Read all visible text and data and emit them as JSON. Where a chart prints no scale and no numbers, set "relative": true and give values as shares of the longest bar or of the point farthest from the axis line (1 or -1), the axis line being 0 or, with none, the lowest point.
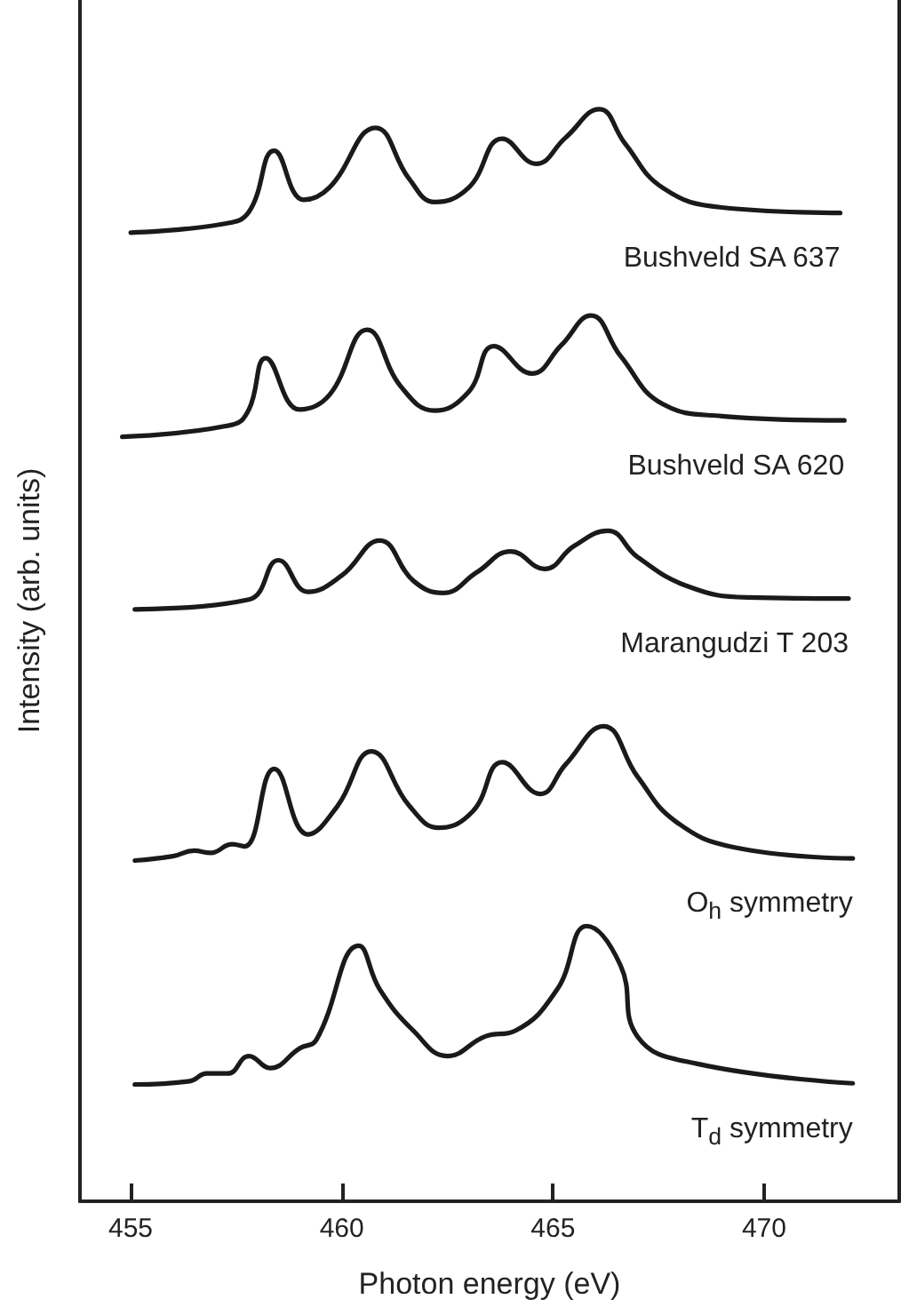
{
  "chart_data": {
    "type": "line",
    "relative": true,
    "xlabel": "Photon energy (eV)",
    "ylabel": "Intensity (arb. units)",
    "xlim": [
      453.8,
      473.2
    ],
    "xticks": [
      455,
      460,
      465,
      470
    ],
    "grid": false,
    "legend": false,
    "marker": "none",
    "line_style": "solid",
    "series": [
      {
        "name": "Bushveld SA 637",
        "color": "#1a1a1a",
        "x": [
          455.0,
          457.2,
          457.8,
          458.4,
          459.1,
          459.7,
          460.8,
          461.6,
          462.2,
          463.0,
          463.8,
          464.6,
          465.3,
          466.1,
          466.7,
          467.6,
          469.0,
          471.8
        ],
        "values": [
          0.887,
          0.895,
          0.906,
          0.962,
          0.917,
          0.928,
          0.983,
          0.936,
          0.915,
          0.928,
          0.973,
          0.95,
          0.974,
          1.0,
          0.969,
          0.928,
          0.91,
          0.905
        ]
      },
      {
        "name": "Bushveld SA 620",
        "color": "#1a1a1a",
        "x": [
          454.8,
          457.4,
          457.8,
          458.2,
          459.0,
          459.7,
          460.6,
          461.4,
          462.2,
          463.0,
          463.6,
          464.5,
          465.2,
          465.9,
          466.6,
          467.6,
          469.0,
          471.9
        ],
        "values": [
          0.7,
          0.711,
          0.725,
          0.772,
          0.725,
          0.738,
          0.798,
          0.746,
          0.724,
          0.741,
          0.783,
          0.758,
          0.784,
          0.811,
          0.774,
          0.73,
          0.719,
          0.715
        ]
      },
      {
        "name": "Marangudzi T 203",
        "color": "#1a1a1a",
        "x": [
          455.1,
          457.8,
          458.5,
          459.2,
          460.0,
          460.9,
          461.7,
          462.4,
          463.2,
          464.0,
          464.8,
          465.5,
          466.3,
          467.0,
          468.2,
          469.6,
          472.0
        ],
        "values": [
          0.542,
          0.551,
          0.587,
          0.558,
          0.573,
          0.605,
          0.568,
          0.557,
          0.576,
          0.595,
          0.579,
          0.6,
          0.614,
          0.59,
          0.563,
          0.553,
          0.552
        ]
      },
      {
        "name": "O$_{h}$ symmetry",
        "color": "#1a1a1a",
        "x": [
          455.1,
          456.0,
          456.5,
          456.9,
          457.4,
          457.7,
          458.4,
          459.2,
          459.9,
          460.7,
          461.6,
          462.3,
          463.1,
          463.8,
          464.7,
          465.3,
          466.2,
          467.0,
          467.9,
          469.3,
          472.1
        ],
        "values": [
          0.312,
          0.316,
          0.321,
          0.319,
          0.327,
          0.325,
          0.396,
          0.336,
          0.362,
          0.412,
          0.362,
          0.342,
          0.357,
          0.402,
          0.373,
          0.4,
          0.435,
          0.389,
          0.348,
          0.324,
          0.314
        ]
      },
      {
        "name": "T$_{d}$ symmetry",
        "color": "#1a1a1a",
        "x": [
          455.1,
          456.4,
          456.8,
          457.3,
          457.8,
          458.3,
          459.0,
          459.4,
          460.4,
          460.9,
          461.7,
          462.5,
          463.4,
          464.1,
          465.1,
          465.8,
          466.6,
          467.0,
          468.4,
          472.1
        ],
        "values": [
          0.107,
          0.11,
          0.117,
          0.117,
          0.133,
          0.122,
          0.14,
          0.148,
          0.234,
          0.194,
          0.156,
          0.133,
          0.151,
          0.156,
          0.194,
          0.252,
          0.216,
          0.151,
          0.126,
          0.108
        ]
      }
    ]
  }
}
